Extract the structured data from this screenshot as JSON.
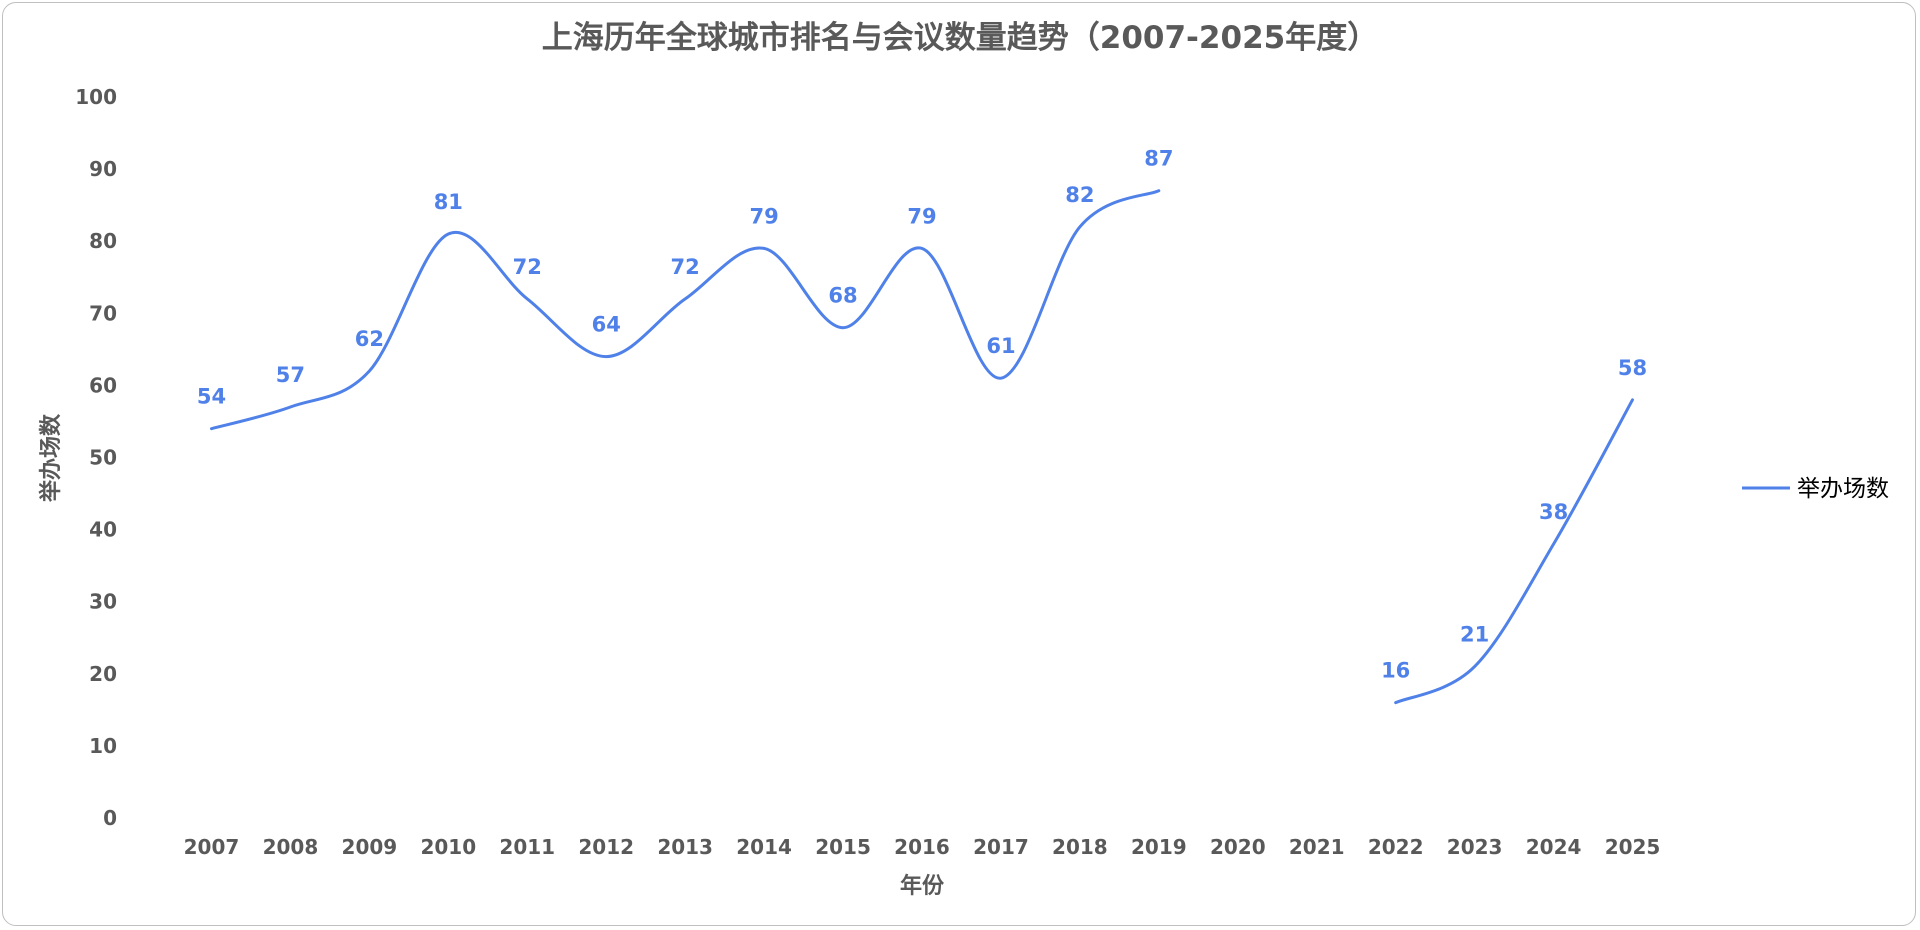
{
  "chart_data": {
    "type": "line",
    "title": "上海历年全球城市排名与会议数量趋势（2007-2025年度）",
    "xlabel": "年份",
    "ylabel": "举办场数",
    "ylim": [
      0,
      100
    ],
    "yticks": [
      "0",
      "10",
      "20",
      "30",
      "40",
      "50",
      "60",
      "70",
      "80",
      "90",
      "100"
    ],
    "categories": [
      "2007",
      "2008",
      "2009",
      "2010",
      "2011",
      "2012",
      "2013",
      "2014",
      "2015",
      "2016",
      "2017",
      "2018",
      "2019",
      "2020",
      "2021",
      "2022",
      "2023",
      "2024",
      "2025"
    ],
    "series": [
      {
        "name": "举办场数",
        "color": "#4f81e8",
        "values": [
          54,
          57,
          62,
          81,
          72,
          64,
          72,
          79,
          68,
          79,
          61,
          82,
          87,
          null,
          null,
          16,
          21,
          38,
          58
        ]
      }
    ],
    "legend_position": "right",
    "grid": false,
    "smooth": true
  }
}
